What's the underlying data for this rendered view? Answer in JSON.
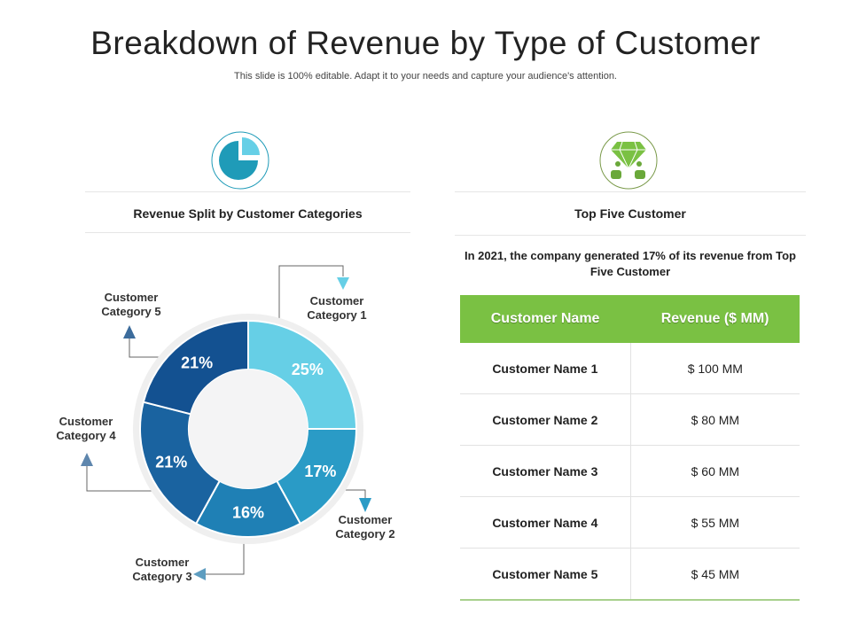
{
  "header": {
    "title": "Breakdown of Revenue by Type of Customer",
    "subtitle": "This slide is 100% editable. Adapt it to your needs and capture your audience's attention."
  },
  "left": {
    "heading": "Revenue Split by Customer Categories",
    "icon": "pie-chart-icon"
  },
  "right": {
    "heading": "Top Five Customer",
    "icon": "diamond-customers-icon",
    "note": "In 2021, the company generated 17% of its revenue from Top Five Customer",
    "table": {
      "headers": [
        "Customer Name",
        "Revenue ($ MM)"
      ],
      "rows": [
        [
          "Customer Name 1",
          "$ 100 MM"
        ],
        [
          "Customer Name 2",
          "$ 80 MM"
        ],
        [
          "Customer Name 3",
          "$ 60 MM"
        ],
        [
          "Customer Name 4",
          "$ 55 MM"
        ],
        [
          "Customer Name 5",
          "$ 45 MM"
        ]
      ]
    }
  },
  "chart_data": {
    "type": "pie",
    "variant": "donut",
    "title": "Revenue Split by Customer Categories",
    "categories": [
      "Customer Category 1",
      "Customer Category 2",
      "Customer Category 3",
      "Customer Category 4",
      "Customer Category 5"
    ],
    "values": [
      25,
      17,
      16,
      21,
      21
    ],
    "labels": [
      "25%",
      "17%",
      "16%",
      "21%",
      "21%"
    ],
    "colors": [
      "#66cfe6",
      "#2a9bc6",
      "#1f80b5",
      "#1a63a0",
      "#135191"
    ]
  }
}
